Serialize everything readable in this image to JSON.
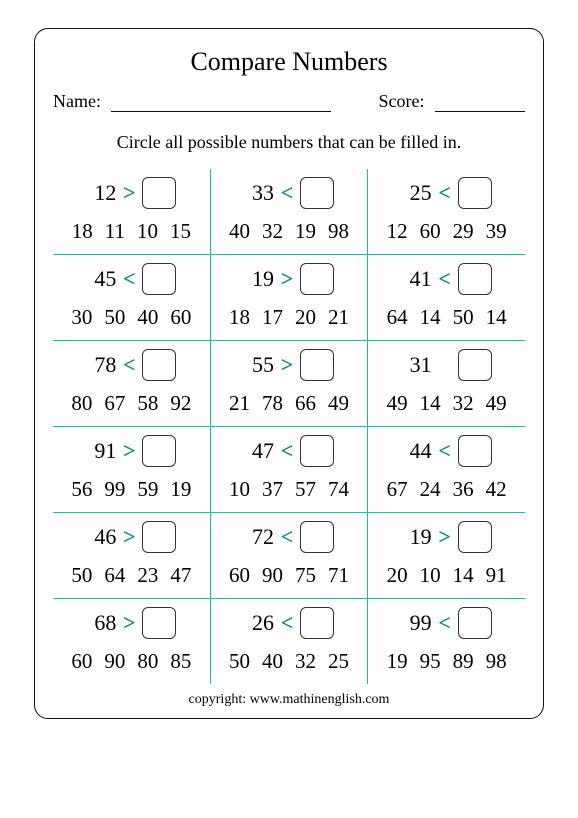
{
  "title": "Compare Numbers",
  "name_label": "Name:",
  "score_label": "Score:",
  "instruction": "Circle all possible numbers that  can be filled in.",
  "copyright": "copyright:   www.mathinenglish.com",
  "colors": {
    "divider": "#16bdb1",
    "operator": "#0d8a7c",
    "border": "#111111",
    "text": "#000000"
  },
  "rows": [
    [
      {
        "num": "12",
        "op": ">",
        "options": [
          "18",
          "11",
          "10",
          "15"
        ]
      },
      {
        "num": "33",
        "op": "<",
        "options": [
          "40",
          "32",
          "19",
          "98"
        ]
      },
      {
        "num": "25",
        "op": "<",
        "options": [
          "12",
          "60",
          "29",
          "39"
        ]
      }
    ],
    [
      {
        "num": "45",
        "op": "<",
        "options": [
          "30",
          "50",
          "40",
          "60"
        ]
      },
      {
        "num": "19",
        "op": ">",
        "options": [
          "18",
          "17",
          "20",
          "21"
        ]
      },
      {
        "num": "41",
        "op": "<",
        "options": [
          "64",
          "14",
          "50",
          "14"
        ]
      }
    ],
    [
      {
        "num": "78",
        "op": "<",
        "options": [
          "80",
          "67",
          "58",
          "92"
        ]
      },
      {
        "num": "55",
        "op": ">",
        "options": [
          "21",
          "78",
          "66",
          "49"
        ]
      },
      {
        "num": "31",
        "op": "",
        "options": [
          "49",
          "14",
          "32",
          "49"
        ]
      }
    ],
    [
      {
        "num": "91",
        "op": ">",
        "options": [
          "56",
          "99",
          "59",
          "19"
        ]
      },
      {
        "num": "47",
        "op": "<",
        "options": [
          "10",
          "37",
          "57",
          "74"
        ]
      },
      {
        "num": "44",
        "op": "<",
        "options": [
          "67",
          "24",
          "36",
          "42"
        ]
      }
    ],
    [
      {
        "num": "46",
        "op": ">",
        "options": [
          "50",
          "64",
          "23",
          "47"
        ]
      },
      {
        "num": "72",
        "op": "<",
        "options": [
          "60",
          "90",
          "75",
          "71"
        ]
      },
      {
        "num": "19",
        "op": ">",
        "options": [
          "20",
          "10",
          "14",
          "91"
        ]
      }
    ],
    [
      {
        "num": "68",
        "op": ">",
        "options": [
          "60",
          "90",
          "80",
          "85"
        ]
      },
      {
        "num": "26",
        "op": "<",
        "options": [
          "50",
          "40",
          "32",
          "25"
        ]
      },
      {
        "num": "99",
        "op": "<",
        "options": [
          "19",
          "95",
          "89",
          "98"
        ]
      }
    ]
  ]
}
